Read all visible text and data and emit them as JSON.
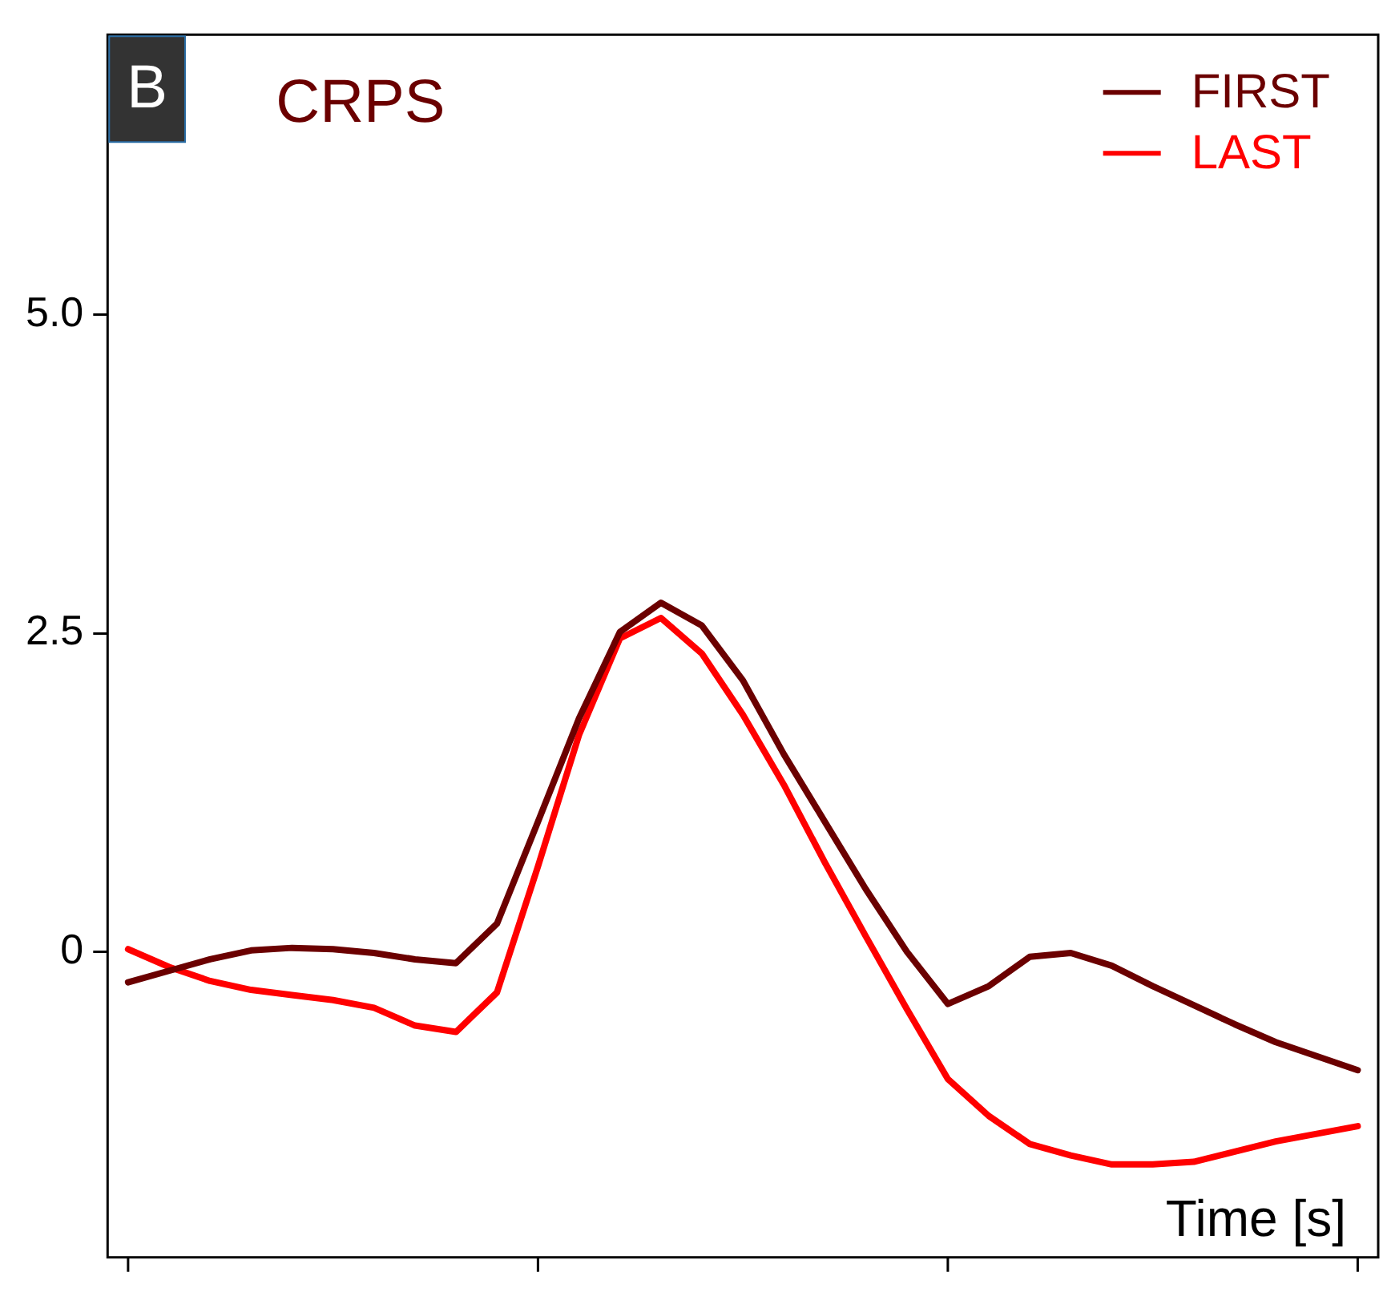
{
  "chart_data": {
    "type": "line",
    "title": "CRPS",
    "xlabel": "Time [s]",
    "annotations": [
      "B"
    ],
    "categories": [
      null,
      null,
      null,
      null,
      null,
      null,
      null,
      null,
      null,
      null,
      null,
      null,
      null,
      null,
      null,
      null,
      null,
      null,
      null,
      null,
      null,
      null,
      null,
      null,
      null,
      null,
      null,
      null,
      null,
      null,
      null
    ],
    "ylim": [
      -2.4,
      7.2
    ],
    "yticks": [
      {
        "value": 0,
        "label": "0"
      },
      {
        "value": 2.5,
        "label": "2.5"
      },
      {
        "value": 5,
        "label": "5.0"
      }
    ],
    "tick_labels": "y",
    "legend": "top right",
    "marker": "none",
    "line_style": "solid",
    "series": [
      {
        "name": "FIRST",
        "color": "#6b0000",
        "values": [
          -0.24,
          -0.15,
          -0.06,
          0.01,
          0.03,
          0.02,
          -0.01,
          -0.06,
          -0.09,
          0.22,
          1.02,
          1.83,
          2.51,
          2.74,
          2.56,
          2.13,
          1.55,
          1.02,
          0.49,
          0.0,
          -0.41,
          -0.27,
          -0.04,
          -0.01,
          -0.11,
          -0.27,
          -0.42,
          -0.57,
          -0.71,
          -0.82,
          -0.93
        ]
      },
      {
        "name": "LAST",
        "color": "#ff0000",
        "values": [
          0.02,
          -0.12,
          -0.23,
          -0.3,
          -0.34,
          -0.38,
          -0.44,
          -0.58,
          -0.63,
          -0.32,
          0.67,
          1.7,
          2.46,
          2.62,
          2.34,
          1.86,
          1.31,
          0.7,
          0.12,
          -0.45,
          -1.0,
          -1.29,
          -1.51,
          -1.6,
          -1.67,
          -1.67,
          -1.65,
          -1.57,
          -1.49,
          -1.43,
          -1.37
        ]
      }
    ]
  }
}
